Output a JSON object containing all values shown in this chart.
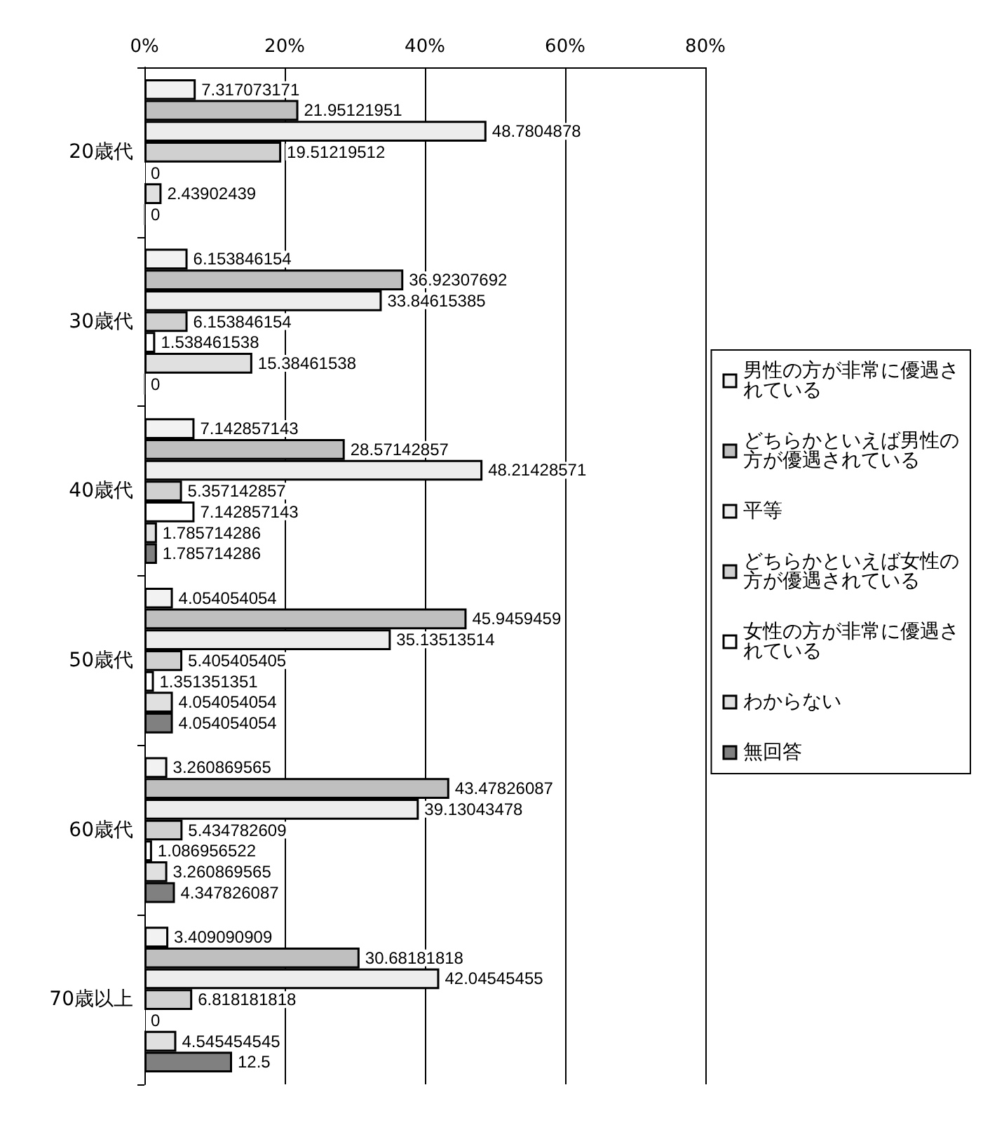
{
  "chart_data": {
    "type": "bar",
    "orientation": "horizontal",
    "categories": [
      "20歳代",
      "30歳代",
      "40歳代",
      "50歳代",
      "60歳代",
      "70歳以上"
    ],
    "series": [
      {
        "name": "男性の方が非常に優遇されている",
        "color": "#f2f2f2",
        "values": [
          7.317073171,
          6.153846154,
          7.142857143,
          4.054054054,
          3.260869565,
          3.409090909
        ]
      },
      {
        "name": "どちらかといえば男性の方が優遇されている",
        "color": "#bfbfbf",
        "values": [
          21.95121951,
          36.92307692,
          28.57142857,
          45.9459459,
          43.47826087,
          30.68181818
        ]
      },
      {
        "name": "平等",
        "color": "#ededed",
        "values": [
          48.7804878,
          33.84615385,
          48.21428571,
          35.13513514,
          39.13043478,
          42.04545455
        ]
      },
      {
        "name": "どちらかといえば女性の方が優遇されている",
        "color": "#d0d0d0",
        "values": [
          19.51219512,
          6.153846154,
          5.357142857,
          5.405405405,
          5.434782609,
          6.818181818
        ]
      },
      {
        "name": "女性の方が非常に優遇されている",
        "color": "#ffffff",
        "values": [
          0,
          1.538461538,
          7.142857143,
          1.351351351,
          1.086956522,
          0
        ]
      },
      {
        "name": "わからない",
        "color": "#e0e0e0",
        "values": [
          2.43902439,
          15.38461538,
          1.785714286,
          4.054054054,
          3.260869565,
          4.545454545
        ]
      },
      {
        "name": "無回答",
        "color": "#808080",
        "values": [
          0,
          0,
          1.785714286,
          4.054054054,
          4.347826087,
          12.5
        ]
      }
    ],
    "xlim": [
      0,
      80
    ],
    "xticks": [
      {
        "value": 0,
        "label": "0%"
      },
      {
        "value": 20,
        "label": "20%"
      },
      {
        "value": 40,
        "label": "40%"
      },
      {
        "value": 60,
        "label": "60%"
      },
      {
        "value": 80,
        "label": "80%"
      }
    ],
    "grid": "x",
    "legend": "right",
    "data_labels": true
  }
}
